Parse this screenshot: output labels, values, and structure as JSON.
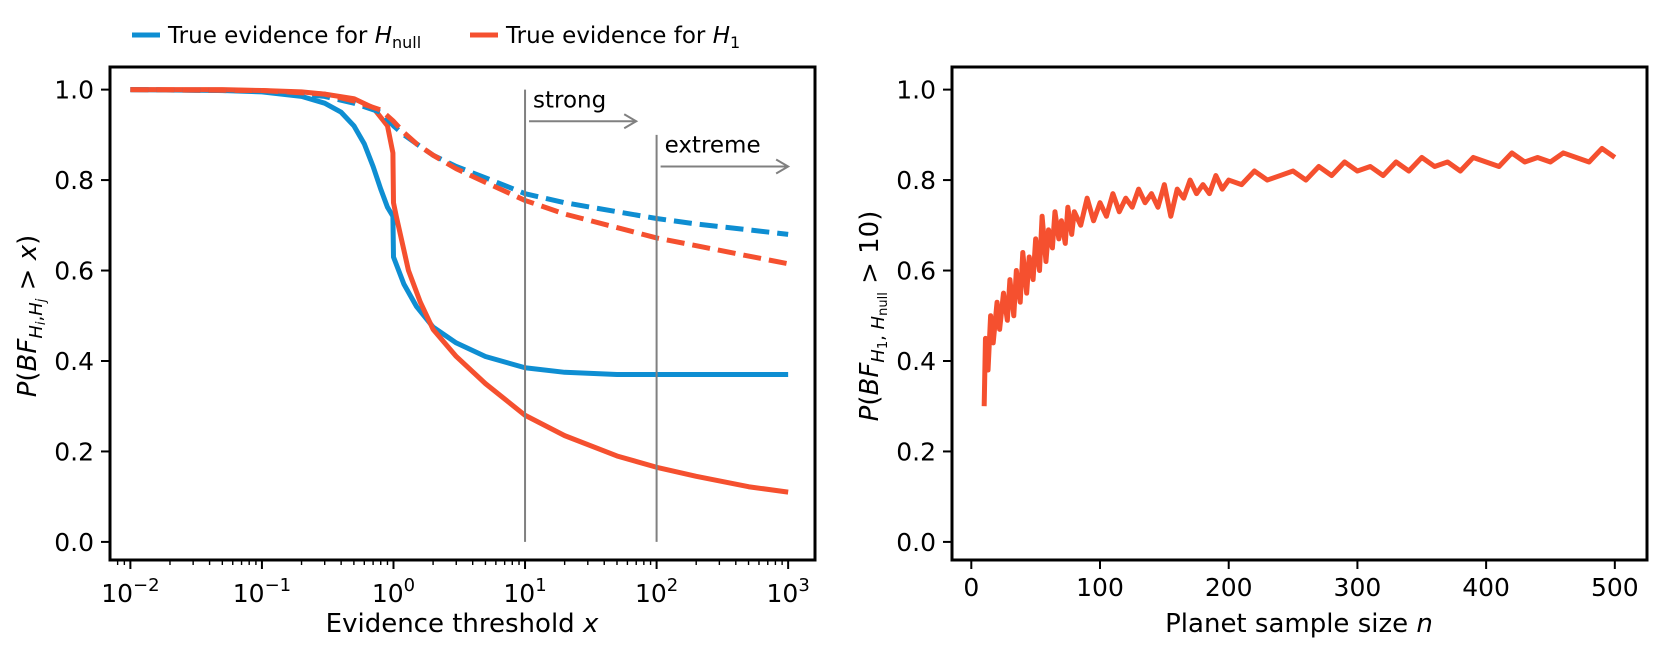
{
  "legend": [
    {
      "label": "True evidence for ",
      "sym": "H",
      "sub": "null",
      "color": "#0e8ed2"
    },
    {
      "label": "True evidence for ",
      "sym": "H",
      "sub": "1",
      "color": "#f5502f"
    }
  ],
  "colors": {
    "blue": "#0e8ed2",
    "red": "#f5502f",
    "gray": "#808080"
  },
  "chart_data": [
    {
      "type": "line",
      "xscale": "log",
      "xlim": [
        0.007,
        1600
      ],
      "ylim": [
        -0.04,
        1.05
      ],
      "xticks": [
        "-2",
        "-1",
        "0",
        "1",
        "2",
        "3"
      ],
      "xtick_base": "10",
      "yticks": [
        "0.0",
        "0.2",
        "0.4",
        "0.6",
        "0.8",
        "1.0"
      ],
      "xlabel_text": "Evidence threshold ",
      "xlabel_var": "x",
      "ylabel": "P(BF H_i,H_j > x)",
      "thresholds": [
        {
          "x": 10,
          "label": "strong",
          "y_top": 1.0,
          "arrow_y": 0.93,
          "arrow_to": 70
        },
        {
          "x": 100,
          "label": "extreme",
          "y_top": 0.9,
          "arrow_y": 0.83,
          "arrow_to": 1000
        }
      ],
      "series": [
        {
          "name": "Hnull solid",
          "color": "blue",
          "dash": false,
          "x": [
            0.01,
            0.05,
            0.1,
            0.2,
            0.3,
            0.4,
            0.5,
            0.6,
            0.7,
            0.8,
            0.9,
            0.99,
            1.0,
            1.2,
            1.5,
            2,
            3,
            5,
            10,
            20,
            50,
            100,
            1000
          ],
          "y": [
            1.0,
            0.998,
            0.995,
            0.985,
            0.97,
            0.95,
            0.92,
            0.88,
            0.83,
            0.78,
            0.74,
            0.72,
            0.63,
            0.57,
            0.52,
            0.475,
            0.44,
            0.41,
            0.385,
            0.375,
            0.37,
            0.37,
            0.37
          ]
        },
        {
          "name": "H1 solid",
          "color": "red",
          "dash": false,
          "x": [
            0.01,
            0.05,
            0.1,
            0.2,
            0.3,
            0.5,
            0.7,
            0.9,
            0.99,
            1.0,
            1.05,
            1.3,
            1.6,
            2,
            3,
            5,
            10,
            20,
            50,
            100,
            200,
            500,
            1000
          ],
          "y": [
            1.0,
            1.0,
            0.998,
            0.995,
            0.99,
            0.98,
            0.96,
            0.92,
            0.86,
            0.75,
            0.72,
            0.6,
            0.53,
            0.47,
            0.41,
            0.35,
            0.28,
            0.235,
            0.19,
            0.165,
            0.145,
            0.122,
            0.11
          ]
        },
        {
          "name": "Hnull dashed",
          "color": "blue",
          "dash": true,
          "x": [
            0.01,
            0.1,
            0.3,
            0.5,
            0.8,
            1.0,
            1.2,
            1.5,
            2,
            3,
            5,
            10,
            20,
            50,
            100,
            200,
            500,
            1000
          ],
          "y": [
            1.0,
            0.997,
            0.985,
            0.97,
            0.95,
            0.92,
            0.9,
            0.88,
            0.855,
            0.83,
            0.805,
            0.77,
            0.75,
            0.73,
            0.715,
            0.703,
            0.69,
            0.68
          ]
        },
        {
          "name": "H1 dashed",
          "color": "red",
          "dash": true,
          "x": [
            0.01,
            0.1,
            0.3,
            0.5,
            0.8,
            1.0,
            1.2,
            1.5,
            2,
            3,
            5,
            10,
            20,
            50,
            100,
            200,
            500,
            1000
          ],
          "y": [
            1.0,
            0.998,
            0.99,
            0.975,
            0.955,
            0.93,
            0.905,
            0.88,
            0.855,
            0.825,
            0.795,
            0.755,
            0.725,
            0.695,
            0.672,
            0.655,
            0.632,
            0.615
          ]
        }
      ]
    },
    {
      "type": "line",
      "xlim": [
        -15,
        525
      ],
      "ylim": [
        -0.04,
        1.05
      ],
      "xticks": [
        "0",
        "100",
        "200",
        "300",
        "400",
        "500"
      ],
      "yticks": [
        "0.0",
        "0.2",
        "0.4",
        "0.6",
        "0.8",
        "1.0"
      ],
      "xlabel_text": "Planet sample size ",
      "xlabel_var": "n",
      "ylabel": "P(BF H1,Hnull > 10)",
      "series": [
        {
          "name": "P(BF > 10) vs n",
          "color": "red",
          "dash": false,
          "x": [
            10,
            11,
            13,
            15,
            17,
            20,
            22,
            25,
            28,
            30,
            33,
            35,
            38,
            40,
            43,
            45,
            48,
            50,
            53,
            55,
            58,
            60,
            63,
            65,
            68,
            70,
            73,
            75,
            78,
            80,
            85,
            90,
            95,
            100,
            105,
            110,
            115,
            120,
            125,
            130,
            135,
            140,
            145,
            150,
            155,
            160,
            165,
            170,
            175,
            180,
            185,
            190,
            195,
            200,
            210,
            220,
            230,
            240,
            250,
            260,
            270,
            280,
            290,
            300,
            310,
            320,
            330,
            340,
            350,
            360,
            370,
            380,
            390,
            400,
            410,
            420,
            430,
            440,
            450,
            460,
            470,
            480,
            490,
            500
          ],
          "y": [
            0.3,
            0.45,
            0.38,
            0.5,
            0.44,
            0.53,
            0.47,
            0.55,
            0.49,
            0.58,
            0.5,
            0.6,
            0.53,
            0.64,
            0.55,
            0.63,
            0.58,
            0.67,
            0.6,
            0.72,
            0.62,
            0.69,
            0.65,
            0.73,
            0.67,
            0.71,
            0.66,
            0.74,
            0.68,
            0.73,
            0.7,
            0.76,
            0.71,
            0.75,
            0.72,
            0.77,
            0.73,
            0.76,
            0.74,
            0.78,
            0.75,
            0.77,
            0.74,
            0.79,
            0.72,
            0.78,
            0.76,
            0.8,
            0.77,
            0.79,
            0.77,
            0.81,
            0.78,
            0.8,
            0.79,
            0.82,
            0.8,
            0.81,
            0.82,
            0.8,
            0.83,
            0.81,
            0.84,
            0.82,
            0.83,
            0.81,
            0.84,
            0.82,
            0.85,
            0.83,
            0.84,
            0.82,
            0.85,
            0.84,
            0.83,
            0.86,
            0.84,
            0.85,
            0.84,
            0.86,
            0.85,
            0.84,
            0.87,
            0.85
          ]
        }
      ]
    }
  ]
}
